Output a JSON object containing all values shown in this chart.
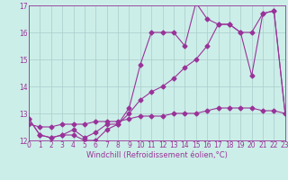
{
  "xlabel": "Windchill (Refroidissement éolien,°C)",
  "bg_color": "#cceee8",
  "grid_color": "#aacccc",
  "line_color": "#993399",
  "xlim": [
    0,
    23
  ],
  "ylim": [
    12,
    17
  ],
  "yticks": [
    12,
    13,
    14,
    15,
    16,
    17
  ],
  "xticks": [
    0,
    1,
    2,
    3,
    4,
    5,
    6,
    7,
    8,
    9,
    10,
    11,
    12,
    13,
    14,
    15,
    16,
    17,
    18,
    19,
    20,
    21,
    22,
    23
  ],
  "line1_x": [
    0,
    1,
    2,
    3,
    4,
    5,
    6,
    7,
    8,
    9,
    10,
    11,
    12,
    13,
    14,
    15,
    16,
    17,
    18,
    19,
    20,
    21,
    22,
    23
  ],
  "line1_y": [
    12.8,
    12.2,
    12.1,
    12.2,
    12.2,
    12.0,
    12.0,
    12.4,
    12.6,
    13.2,
    14.8,
    16.0,
    16.0,
    16.0,
    15.5,
    17.1,
    16.5,
    16.3,
    16.3,
    16.0,
    14.4,
    16.7,
    16.8,
    13.0
  ],
  "line2_x": [
    0,
    1,
    2,
    3,
    4,
    5,
    6,
    7,
    8,
    9,
    10,
    11,
    12,
    13,
    14,
    15,
    16,
    17,
    18,
    19,
    20,
    21,
    22,
    23
  ],
  "line2_y": [
    12.8,
    12.2,
    12.1,
    12.2,
    12.4,
    12.1,
    12.3,
    12.6,
    12.6,
    13.0,
    13.5,
    13.8,
    14.0,
    14.3,
    14.7,
    15.0,
    15.5,
    16.3,
    16.3,
    16.0,
    16.0,
    16.7,
    16.8,
    13.0
  ],
  "line3_x": [
    0,
    1,
    2,
    3,
    4,
    5,
    6,
    7,
    8,
    9,
    10,
    11,
    12,
    13,
    14,
    15,
    16,
    17,
    18,
    19,
    20,
    21,
    22,
    23
  ],
  "line3_y": [
    12.6,
    12.5,
    12.5,
    12.6,
    12.6,
    12.6,
    12.7,
    12.7,
    12.7,
    12.8,
    12.9,
    12.9,
    12.9,
    13.0,
    13.0,
    13.0,
    13.1,
    13.2,
    13.2,
    13.2,
    13.2,
    13.1,
    13.1,
    13.0
  ],
  "marker_size": 2.5,
  "linewidth": 0.8,
  "tick_fontsize": 5.5,
  "xlabel_fontsize": 6.0
}
